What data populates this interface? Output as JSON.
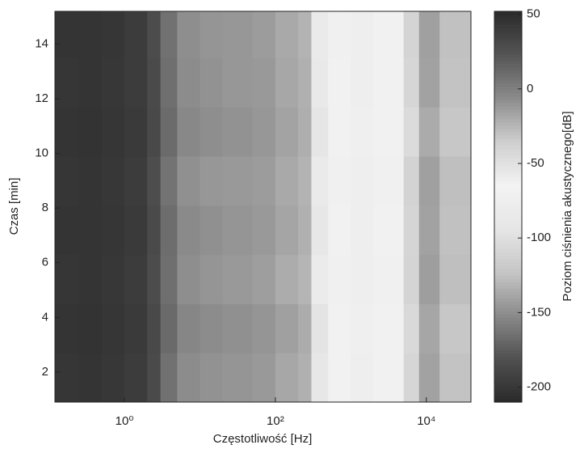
{
  "chart_data": {
    "type": "heatmap",
    "xlabel": "Częstotliwość [Hz]",
    "ylabel": "Czas [min]",
    "colorbar_label": "Poziom ciśnienia akustycznego[dB]",
    "xscale": "log",
    "xlim": [
      0.12,
      39000
    ],
    "xticks": [
      {
        "value": 1,
        "label": "10⁰"
      },
      {
        "value": 100,
        "label": "10²"
      },
      {
        "value": 10000,
        "label": "10⁴"
      }
    ],
    "ylim": [
      0.9,
      15.2
    ],
    "yticks": [
      2,
      4,
      6,
      8,
      10,
      12,
      14
    ],
    "clim": [
      -210,
      52
    ],
    "cticks": [
      50,
      0,
      -50,
      -100,
      -150,
      -200
    ],
    "colormap": [
      "#2a2a2a",
      "#505050",
      "#8a8a8a",
      "#c6c6c6",
      "#e6e6e6",
      "#f3f3f3",
      "#cfcfcf",
      "#8c8c8c",
      "#555555",
      "#2a2a2a"
    ],
    "xbins": [
      0.12,
      0.25,
      0.5,
      1,
      2,
      3,
      5,
      10,
      20,
      50,
      100,
      200,
      300,
      500,
      1000,
      2000,
      5000,
      8000,
      15000,
      39000
    ],
    "ybins": [
      0.9,
      2.7,
      4.5,
      6.3,
      8.1,
      9.9,
      11.7,
      13.5,
      15.2
    ],
    "z": [
      [
        44,
        45,
        43,
        40,
        30,
        8,
        -6,
        -9,
        -10,
        -12,
        -18,
        -22,
        -55,
        -70,
        -75,
        -70,
        -108,
        -140,
        -124
      ],
      [
        45,
        46,
        44,
        41,
        31,
        12,
        -3,
        -6,
        -8,
        -10,
        -15,
        -20,
        -52,
        -68,
        -74,
        -68,
        -105,
        -138,
        -122
      ],
      [
        44,
        45,
        43,
        40,
        29,
        9,
        -7,
        -10,
        -12,
        -14,
        -20,
        -24,
        -58,
        -72,
        -76,
        -71,
        -110,
        -142,
        -126
      ],
      [
        45,
        45,
        44,
        41,
        30,
        10,
        -5,
        -8,
        -10,
        -12,
        -17,
        -22,
        -55,
        -70,
        -75,
        -70,
        -109,
        -140,
        -125
      ],
      [
        44,
        45,
        43,
        40,
        28,
        7,
        -8,
        -11,
        -12,
        -13,
        -19,
        -23,
        -57,
        -71,
        -76,
        -71,
        -111,
        -141,
        -126
      ],
      [
        45,
        46,
        44,
        41,
        31,
        11,
        -4,
        -7,
        -9,
        -11,
        -16,
        -21,
        -54,
        -69,
        -74,
        -69,
        -104,
        -136,
        -122
      ],
      [
        44,
        45,
        43,
        40,
        30,
        9,
        -6,
        -9,
        -11,
        -12,
        -18,
        -22,
        -56,
        -70,
        -75,
        -70,
        -108,
        -140,
        -124
      ],
      [
        45,
        45,
        44,
        40,
        29,
        8,
        -7,
        -10,
        -11,
        -13,
        -19,
        -23,
        -57,
        -71,
        -76,
        -70,
        -110,
        -141,
        -125
      ]
    ]
  }
}
